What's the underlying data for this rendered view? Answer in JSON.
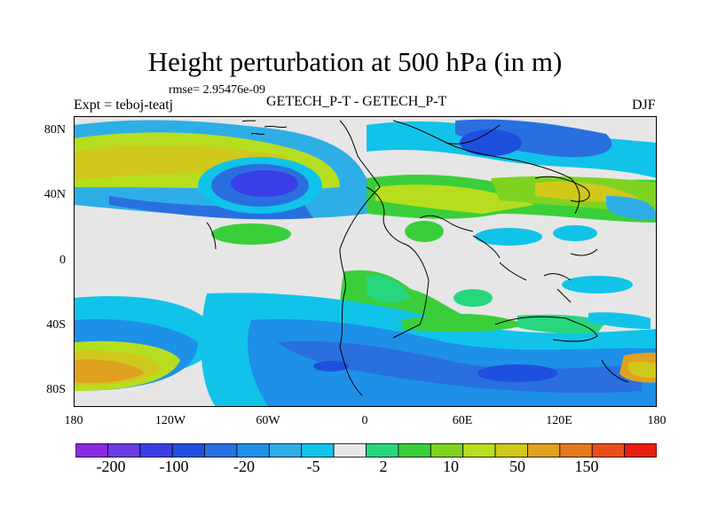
{
  "title": "Height perturbation at 500 hPa (in m)",
  "rmse": "rmse= 2.95476e-09",
  "experiment": "Expt = teboj-teatj",
  "center_label": "GETECH_P-T - GETECH_P-T",
  "season": "DJF",
  "lat_ticks": [
    "80N",
    "40N",
    "0",
    "40S",
    "80S"
  ],
  "lon_ticks": [
    "180",
    "120W",
    "60W",
    "0",
    "60E",
    "120E",
    "180"
  ],
  "colorbar": {
    "colors": [
      "#8a2be2",
      "#6a3de2",
      "#3a3ee6",
      "#1f4fdd",
      "#2a6fe0",
      "#1e90e8",
      "#2eaee6",
      "#11c3e9",
      "#e6e6e6",
      "#28d67e",
      "#3acf3a",
      "#7ed321",
      "#b7de1e",
      "#d1c81c",
      "#e0a020",
      "#e6781e",
      "#ea4c1c",
      "#e81c0f"
    ],
    "labels": [
      "-200",
      "-100",
      "-20",
      "-5",
      "2",
      "10",
      "50",
      "150"
    ]
  }
}
